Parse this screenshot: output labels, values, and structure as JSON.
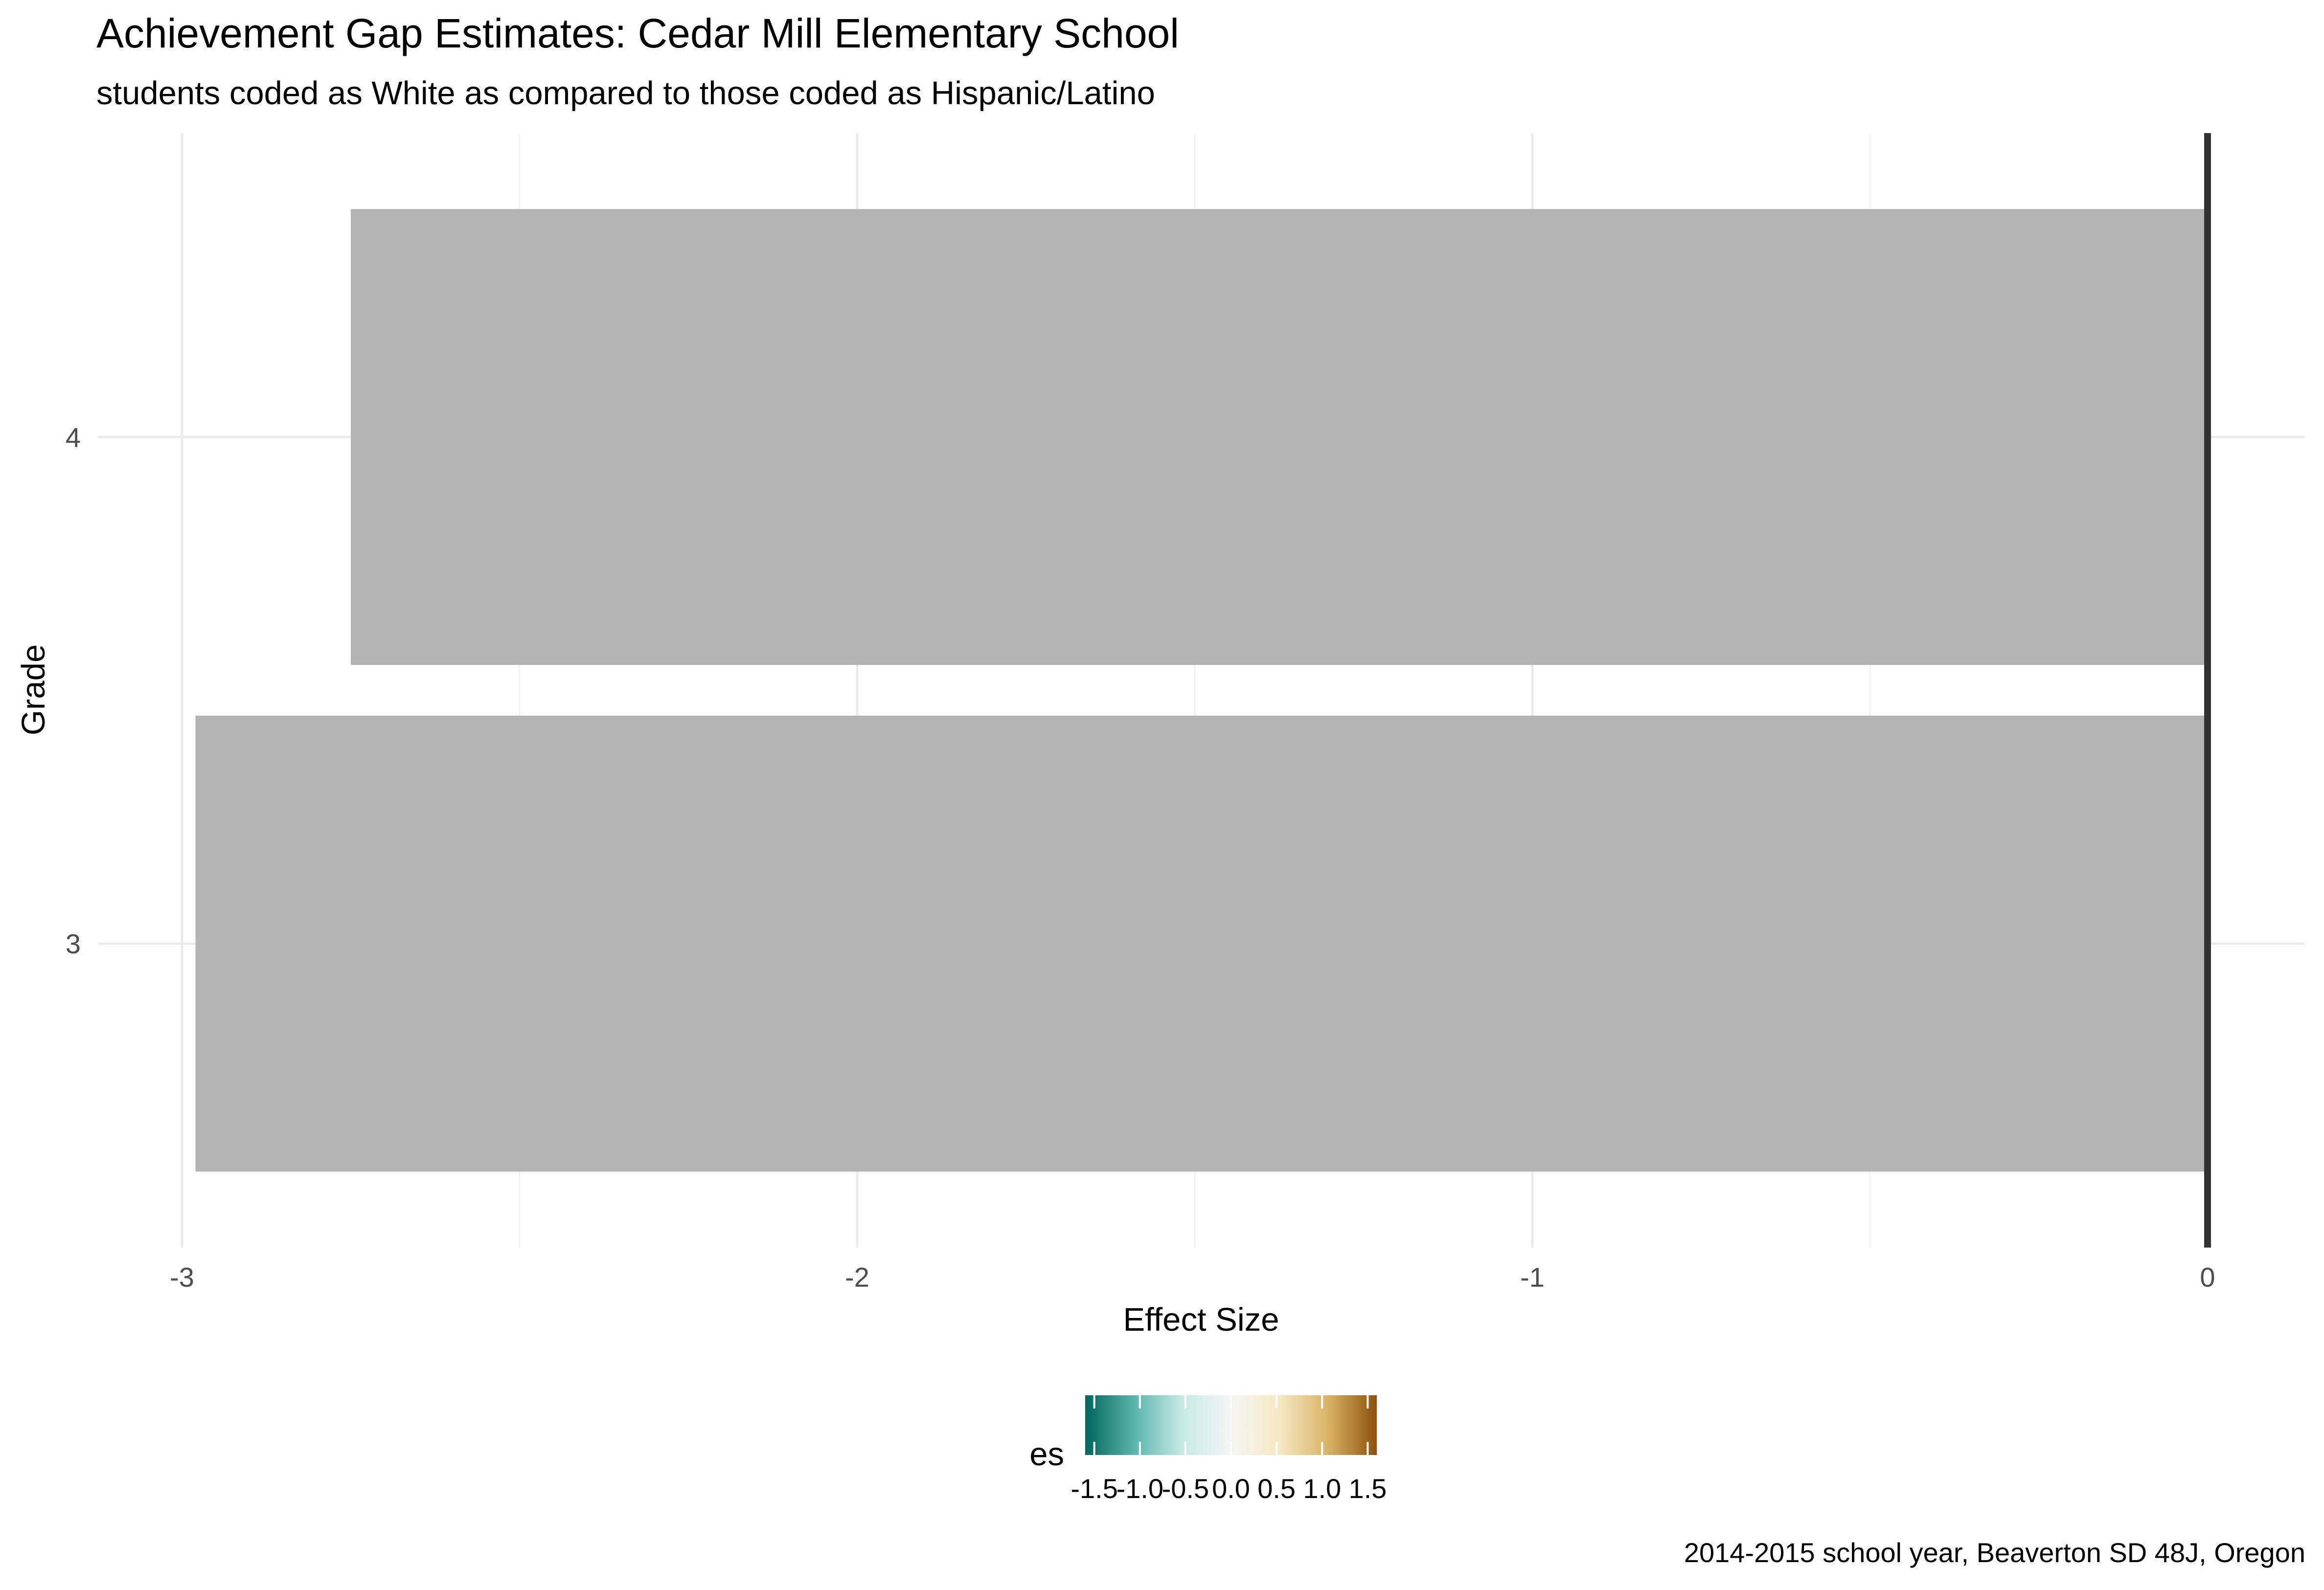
{
  "chart_data": {
    "type": "bar",
    "orientation": "horizontal",
    "title": "Achievement Gap Estimates: Cedar Mill Elementary School",
    "subtitle": "students coded as White as compared to those coded as Hispanic/Latino",
    "xlabel": "Effect Size",
    "ylabel": "Grade",
    "caption": "2014-2015 school year, Beaverton SD 48J, Oregon",
    "categories": [
      "3",
      "4"
    ],
    "values": [
      -2.98,
      -2.75
    ],
    "xlim": [
      -3.0,
      0.0
    ],
    "x_ticks": [
      -3,
      -2,
      -1,
      0
    ],
    "x_tick_labels": [
      "-3",
      "-2",
      "-1",
      "0"
    ],
    "bar_color": "#b3b3b3",
    "grid": true,
    "zero_line": true,
    "legend": {
      "title": "es",
      "placement": "bottom",
      "type": "colorbar",
      "range": [
        -1.6,
        1.6
      ],
      "ticks": [
        -1.5,
        -1.0,
        -0.5,
        0.0,
        0.5,
        1.0,
        1.5
      ],
      "tick_labels": [
        "-1.5",
        "-1.0",
        "-0.5",
        "0.0",
        "0.5",
        "1.0",
        "1.5"
      ],
      "colors": [
        "#01665e",
        "#5ab4ac",
        "#c7eae5",
        "#f5f5f5",
        "#f6e8c3",
        "#d8b365",
        "#8c510a"
      ]
    }
  }
}
